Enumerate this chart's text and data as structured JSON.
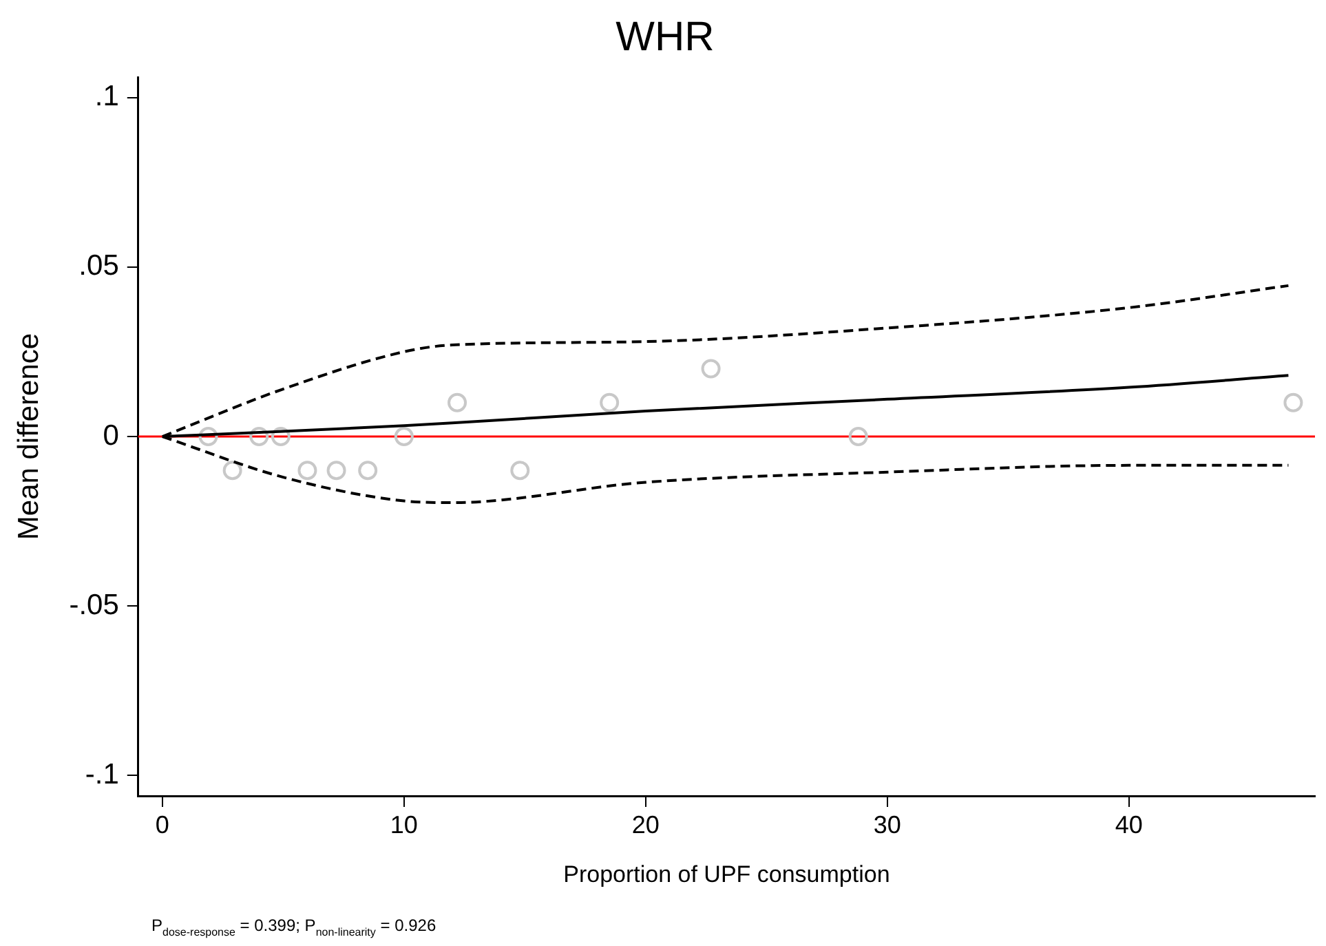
{
  "chart_data": {
    "type": "scatter",
    "title": "WHR",
    "xlabel": "Proportion of UPF consumption",
    "ylabel": "Mean difference",
    "xlim": [
      -1,
      47.7
    ],
    "ylim": [
      -0.106,
      0.106
    ],
    "xticks": [
      0,
      10,
      20,
      30,
      40
    ],
    "yticks": [
      {
        "value": -0.1,
        "label": "-.1"
      },
      {
        "value": -0.05,
        "label": "-.05"
      },
      {
        "value": 0,
        "label": "0"
      },
      {
        "value": 0.05,
        "label": ".05"
      },
      {
        "value": 0.1,
        "label": ".1"
      }
    ],
    "grid": false,
    "legend": false,
    "series": [
      {
        "color": "#c8c8c8",
        "marker": "circle",
        "x": [
          1.9,
          2.9,
          4.0,
          4.9,
          6.0,
          7.2,
          8.5,
          10.0,
          12.2,
          14.8,
          18.5,
          22.7,
          28.8,
          46.8
        ],
        "values": [
          0,
          -0.01,
          0,
          0,
          -0.01,
          -0.01,
          -0.01,
          0,
          0.01,
          -0.01,
          0.01,
          0.02,
          0,
          0.01
        ]
      },
      {
        "type": "line",
        "color": "#000000",
        "marker": "none",
        "line_style": "solid",
        "x": [
          0,
          5,
          10,
          12,
          20,
          30,
          40,
          46.6
        ],
        "values": [
          0,
          0.0015,
          0.0032,
          0.004,
          0.0075,
          0.011,
          0.0145,
          0.018
        ]
      },
      {
        "type": "line",
        "color": "#000000",
        "marker": "none",
        "line_style": "dashed",
        "x": [
          0,
          5,
          10,
          12,
          20,
          30,
          40,
          46.6
        ],
        "values": [
          0,
          -0.012,
          -0.019,
          -0.0195,
          -0.0135,
          -0.0105,
          -0.0085,
          -0.0085
        ]
      },
      {
        "type": "line",
        "color": "#000000",
        "marker": "none",
        "line_style": "dashed",
        "x": [
          0,
          5,
          10,
          12,
          20,
          30,
          40,
          46.6
        ],
        "values": [
          0,
          0.014,
          0.025,
          0.027,
          0.028,
          0.032,
          0.038,
          0.0445
        ]
      }
    ],
    "ref_lines": [
      {
        "axis": "y",
        "value": 0,
        "color": "#ff0000"
      }
    ],
    "annotations": [
      "P$_{dose-response}$ = 0.399; P$_{non-linearity}$ = 0.926"
    ]
  }
}
